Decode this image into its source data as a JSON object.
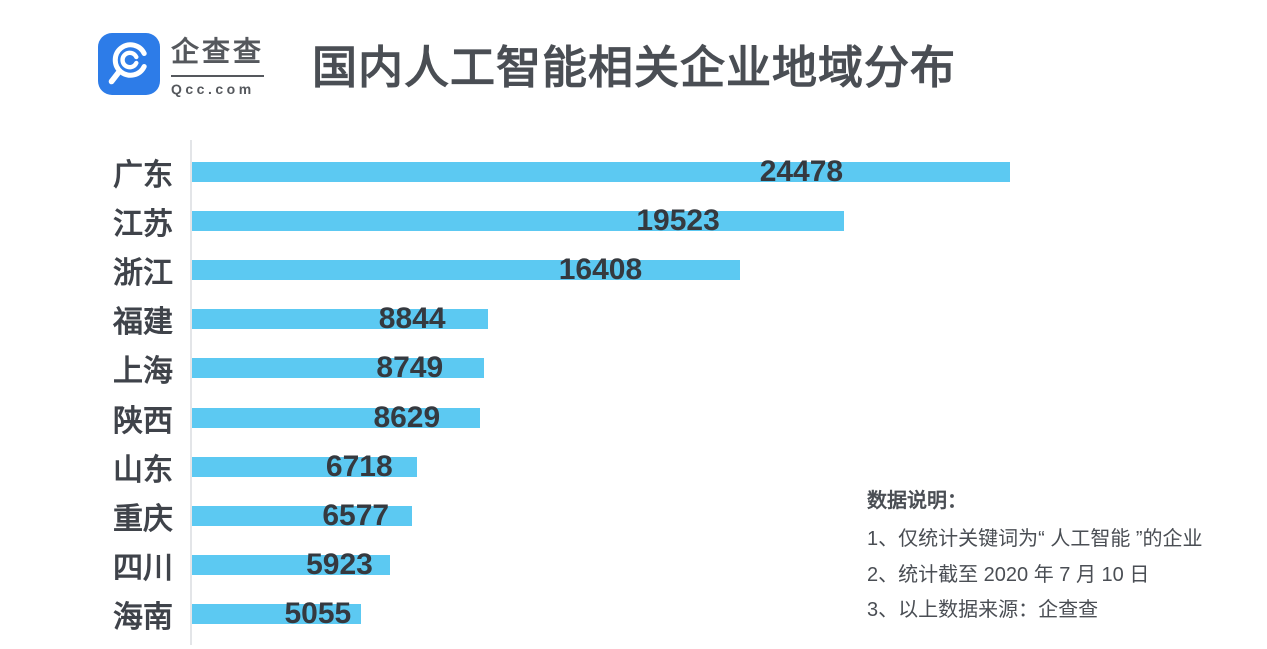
{
  "brand": {
    "name": "企查查",
    "domain_label": "Qcc.com",
    "logo_color": "#2d7ce8",
    "logo_text_color": "#55585d"
  },
  "header": {
    "title": "国内人工智能相关企业地域分布"
  },
  "chart_data": {
    "type": "bar",
    "orientation": "horizontal",
    "title": "国内人工智能相关企业地域分布",
    "categories": [
      "广东",
      "江苏",
      "浙江",
      "福建",
      "上海",
      "陕西",
      "山东",
      "重庆",
      "四川",
      "海南"
    ],
    "values": [
      24478,
      19523,
      16408,
      8844,
      8749,
      8629,
      6718,
      6577,
      5923,
      5055
    ],
    "xlabel": "",
    "ylabel": "",
    "xlim": [
      0,
      24478
    ],
    "grid": false,
    "legend": false,
    "bar_color": "#5cc9f2",
    "value_label_color": "#35393f",
    "category_label_color": "#3f434a",
    "axis_line_color": "#e3e5e8",
    "value_labels_shown": true
  },
  "notes": {
    "heading": "数据说明：",
    "items": [
      "1、仅统计关键词为“ 人工智能 ”的企业",
      "2、统计截至 2020 年 7 月 10 日",
      "3、以上数据来源：企查查"
    ]
  }
}
